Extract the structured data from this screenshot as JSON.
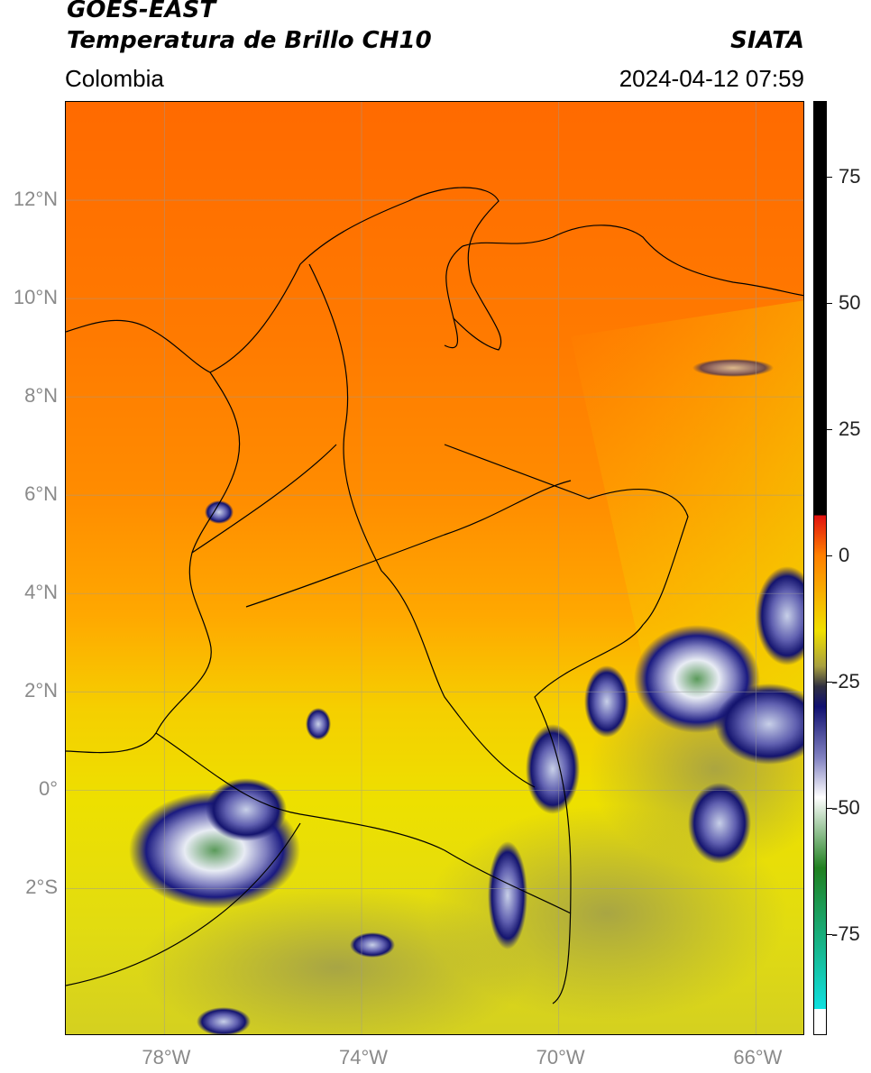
{
  "header": {
    "satellite": "GOES-EAST",
    "product": "Temperatura de Brillo CH10",
    "region": "Colombia",
    "agency": "SIATA",
    "datetime": "2024-04-12 07:59"
  },
  "map": {
    "lon_range": [
      -80,
      -65
    ],
    "lat_range": [
      -5,
      14
    ],
    "lon_ticks": [
      {
        "value": -78,
        "label": "78°W"
      },
      {
        "value": -74,
        "label": "74°W"
      },
      {
        "value": -70,
        "label": "70°W"
      },
      {
        "value": -66,
        "label": "66°W"
      }
    ],
    "lat_ticks": [
      {
        "value": 12,
        "label": "12°N"
      },
      {
        "value": 10,
        "label": "10°N"
      },
      {
        "value": 8,
        "label": "8°N"
      },
      {
        "value": 6,
        "label": "6°N"
      },
      {
        "value": 4,
        "label": "4°N"
      },
      {
        "value": 2,
        "label": "2°N"
      },
      {
        "value": 0,
        "label": "0°"
      },
      {
        "value": -2,
        "label": "2°S"
      }
    ],
    "gridlines": true
  },
  "colorbar": {
    "range": [
      -95,
      90
    ],
    "ticks": [
      {
        "value": 75,
        "label": "75"
      },
      {
        "value": 50,
        "label": "50"
      },
      {
        "value": 25,
        "label": "25"
      },
      {
        "value": 0,
        "label": "0"
      },
      {
        "value": -25,
        "label": "-25"
      },
      {
        "value": -50,
        "label": "-50"
      },
      {
        "value": -75,
        "label": "-75"
      }
    ],
    "colors": {
      "black_above": "#000000",
      "red": "#e01010",
      "orange": "#ff8000",
      "yellow": "#f0e000",
      "olive": "#a8a040",
      "navy": "#101070",
      "white": "#ffffff",
      "green": "#208020",
      "cyan": "#10e0e0"
    }
  }
}
